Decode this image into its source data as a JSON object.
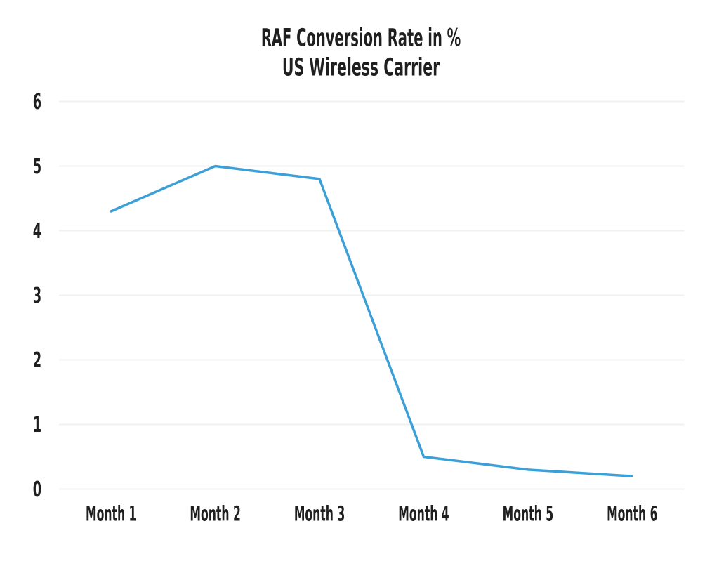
{
  "chart_data": {
    "type": "line",
    "title": "RAF Conversion Rate in %",
    "subtitle": "US Wireless Carrier",
    "categories": [
      "Month 1",
      "Month 2",
      "Month 3",
      "Month 4",
      "Month 5",
      "Month 6"
    ],
    "series": [
      {
        "name": "RAF Conversion Rate",
        "values": [
          4.3,
          5.0,
          4.8,
          0.5,
          0.3,
          0.2
        ]
      }
    ],
    "xlabel": "",
    "ylabel": "",
    "ylim": [
      0,
      6
    ],
    "yticks": [
      0,
      1,
      2,
      3,
      4,
      5,
      6
    ],
    "grid": "horizontal",
    "legend": "none",
    "colors": {
      "line": "#3b9fd8",
      "grid": "#f0f0f0",
      "text": "#1f1f1f",
      "background": "#ffffff"
    }
  }
}
